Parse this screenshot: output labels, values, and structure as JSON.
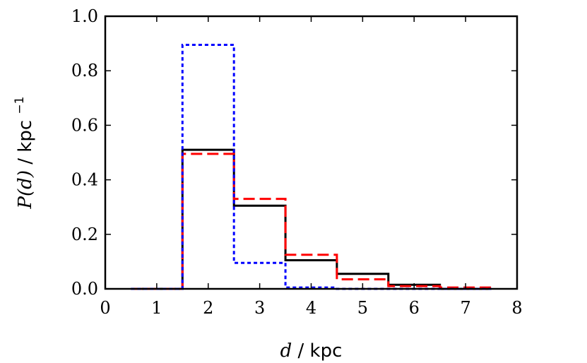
{
  "chart_data": {
    "type": "line",
    "title": "",
    "xlabel_math": "d",
    "xlabel_unit": "/ kpc",
    "ylabel_math": "P(d)",
    "ylabel_unit": "/ kpc",
    "ylabel_exp": "−1",
    "xlim": [
      0,
      8
    ],
    "ylim": [
      0,
      1.0
    ],
    "xticks": [
      "0",
      "1",
      "2",
      "3",
      "4",
      "5",
      "6",
      "7",
      "8"
    ],
    "yticks": [
      "0.0",
      "0.2",
      "0.4",
      "0.6",
      "0.8",
      "1.0"
    ],
    "grid": false,
    "bin_edges": [
      0.5,
      1.5,
      2.5,
      3.5,
      4.5,
      5.5,
      6.5,
      7.5
    ],
    "series": [
      {
        "style": "solid-black",
        "color": "#000000",
        "values": [
          0.0,
          0.51,
          0.305,
          0.105,
          0.055,
          0.015,
          0.0
        ]
      },
      {
        "style": "dashed-red",
        "color": "#ff0000",
        "values": [
          0.0,
          0.495,
          0.33,
          0.125,
          0.035,
          0.01,
          0.005
        ]
      },
      {
        "style": "dotted-blue",
        "color": "#0000ff",
        "values": [
          0.0,
          0.895,
          0.095,
          0.005,
          0.0,
          0.0,
          0.0
        ]
      }
    ]
  }
}
